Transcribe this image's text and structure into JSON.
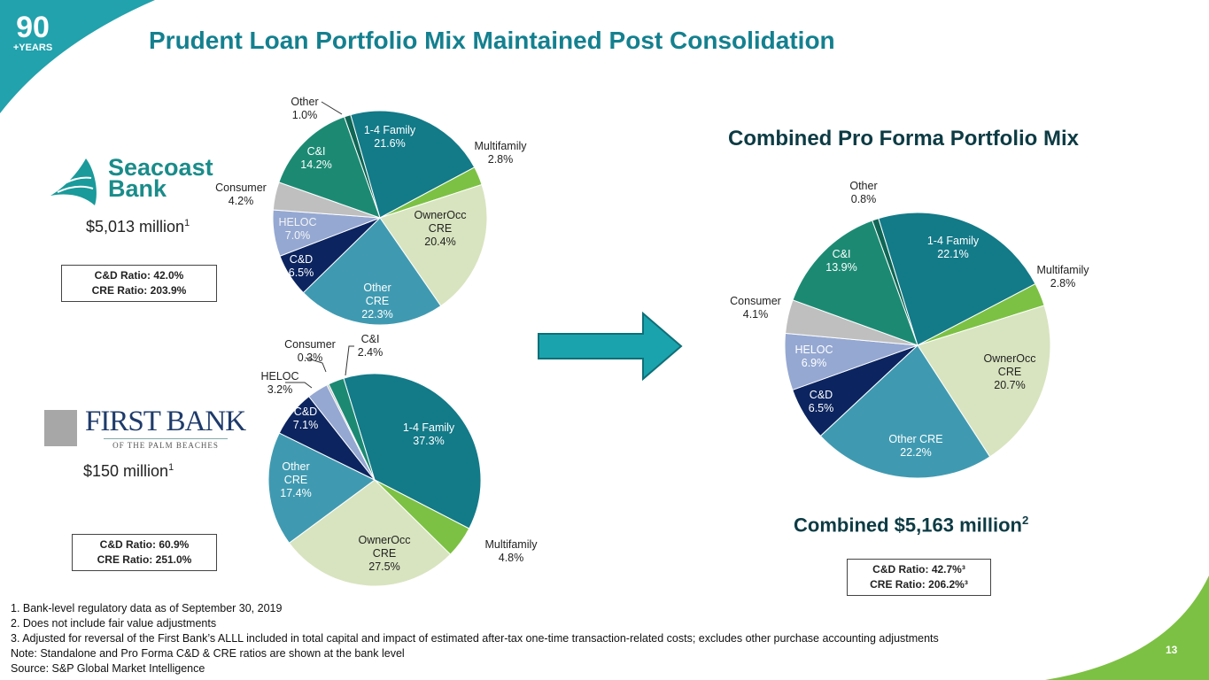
{
  "header": {
    "title": "Prudent Loan Portfolio Mix Maintained Post Consolidation",
    "badge_number": "90",
    "badge_text": "+YEARS"
  },
  "seacoast": {
    "logo_text_1": "Seacoast",
    "logo_text_2": "Bank",
    "amount": "$5,013 million",
    "amount_sup": "1",
    "cd_ratio": "C&D Ratio: 42.0%",
    "cre_ratio": "CRE Ratio: 203.9%"
  },
  "firstbank": {
    "logo_text": "FIRST BANK",
    "logo_sub": "OF THE PALM BEACHES",
    "amount": "$150 million",
    "amount_sup": "1",
    "cd_ratio": "C&D Ratio: 60.9%",
    "cre_ratio": "CRE Ratio: 251.0%"
  },
  "combined": {
    "title": "Combined Pro Forma Portfolio Mix",
    "amount": "Combined $5,163 million",
    "amount_sup": "2",
    "cd_ratio": "C&D Ratio: 42.7%³",
    "cre_ratio": "CRE Ratio: 206.2%³"
  },
  "colors": {
    "Other": "#0f6654",
    "1-4 Family": "#137a88",
    "Multifamily": "#7cc143",
    "OwnerOcc CRE": "#d8e4bf",
    "Other CRE": "#3f9ab1",
    "C&D": "#0c2560",
    "HELOC": "#95a8d2",
    "Consumer": "#bfbfbf",
    "C&I": "#1c8a73",
    "teal": "#14808f",
    "green": "#7cc143"
  },
  "chart_data": [
    {
      "type": "pie",
      "title": "Seacoast Bank",
      "slices": [
        {
          "label": "Other",
          "value": 1.0,
          "value_text": "1.0%"
        },
        {
          "label": "1-4 Family",
          "value": 21.6,
          "value_text": "21.6%"
        },
        {
          "label": "Multifamily",
          "value": 2.8,
          "value_text": "2.8%"
        },
        {
          "label": "OwnerOcc CRE",
          "value": 20.4,
          "value_text": "20.4%"
        },
        {
          "label": "Other CRE",
          "value": 22.3,
          "value_text": "22.3%"
        },
        {
          "label": "C&D",
          "value": 6.5,
          "value_text": "6.5%"
        },
        {
          "label": "HELOC",
          "value": 7.0,
          "value_text": "7.0%"
        },
        {
          "label": "Consumer",
          "value": 4.2,
          "value_text": "4.2%"
        },
        {
          "label": "C&I",
          "value": 14.2,
          "value_text": "14.2%"
        }
      ]
    },
    {
      "type": "pie",
      "title": "First Bank of the Palm Beaches",
      "slices": [
        {
          "label": "1-4 Family",
          "value": 37.3,
          "value_text": "37.3%"
        },
        {
          "label": "Multifamily",
          "value": 4.8,
          "value_text": "4.8%"
        },
        {
          "label": "OwnerOcc CRE",
          "value": 27.5,
          "value_text": "27.5%"
        },
        {
          "label": "Other CRE",
          "value": 17.4,
          "value_text": "17.4%"
        },
        {
          "label": "C&D",
          "value": 7.1,
          "value_text": "7.1%"
        },
        {
          "label": "HELOC",
          "value": 3.2,
          "value_text": "3.2%"
        },
        {
          "label": "Consumer",
          "value": 0.3,
          "value_text": "0.3%"
        },
        {
          "label": "C&I",
          "value": 2.4,
          "value_text": "2.4%"
        }
      ]
    },
    {
      "type": "pie",
      "title": "Combined Pro Forma Portfolio Mix",
      "slices": [
        {
          "label": "Other",
          "value": 0.8,
          "value_text": "0.8%"
        },
        {
          "label": "1-4 Family",
          "value": 22.1,
          "value_text": "22.1%"
        },
        {
          "label": "Multifamily",
          "value": 2.8,
          "value_text": "2.8%"
        },
        {
          "label": "OwnerOcc CRE",
          "value": 20.7,
          "value_text": "20.7%"
        },
        {
          "label": "Other CRE",
          "value": 22.2,
          "value_text": "22.2%"
        },
        {
          "label": "C&D",
          "value": 6.5,
          "value_text": "6.5%"
        },
        {
          "label": "HELOC",
          "value": 6.9,
          "value_text": "6.9%"
        },
        {
          "label": "Consumer",
          "value": 4.1,
          "value_text": "4.1%"
        },
        {
          "label": "C&I",
          "value": 13.9,
          "value_text": "13.9%"
        }
      ]
    }
  ],
  "footnotes": [
    "1.  Bank-level regulatory data as of September 30, 2019",
    "2.  Does not include fair value adjustments",
    "3.  Adjusted for reversal of the First Bank’s ALLL included in total capital and impact of estimated after-tax one-time transaction-related costs; excludes other purchase accounting adjustments",
    "Note: Standalone and Pro Forma C&D & CRE ratios are shown at the bank level",
    "Source: S&P Global Market Intelligence"
  ],
  "page_number": "13"
}
